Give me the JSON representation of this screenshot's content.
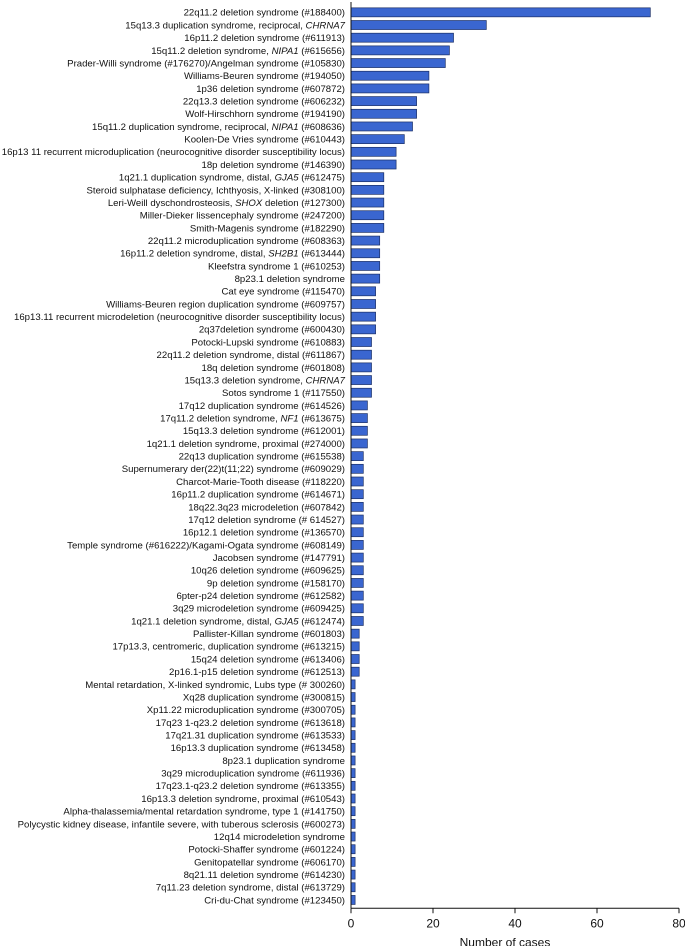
{
  "chart_data": {
    "type": "bar",
    "orientation": "horizontal",
    "title": "",
    "xlabel": "Number of cases",
    "ylabel": "",
    "xlim": [
      0,
      80
    ],
    "xticks": [
      0,
      20,
      40,
      60,
      80
    ],
    "grid": false,
    "legend": "none",
    "bar_color": "#3a66d0",
    "categories": [
      "22q11.2 deletion syndrome (#188400)",
      "15q13.3 duplication syndrome, reciprocal, CHRNA7",
      "16p11.2 deletion syndrome (#611913)",
      "15q11.2 deletion syndrome, NIPA1 (#615656)",
      "Prader-Willi syndrome (#176270)/Angelman syndrome (#105830)",
      "Williams-Beuren syndrome (#194050)",
      "1p36 deletion syndrome (#607872)",
      "22q13.3 deletion syndrome (#606232)",
      "Wolf-Hirschhorn syndrome (#194190)",
      "15q11.2 duplication syndrome, reciprocal, NIPA1 (#608636)",
      "Koolen-De Vries syndrome (#610443)",
      "16p13 11 recurrent microduplication (neurocognitive disorder susceptibility locus)",
      "18p deletion syndrome (#146390)",
      "1q21.1 duplication syndrome, distal, GJA5 (#612475)",
      "Steroid sulphatase deficiency, Ichthyosis, X-linked (#308100)",
      "Leri-Weill dyschondrosteosis, SHOX deletion (#127300)",
      "Miller-Dieker lissencephaly syndrome (#247200)",
      "Smith-Magenis syndrome (#182290)",
      "22q11.2 microduplication syndrome (#608363)",
      "16p11.2 deletion syndrome, distal, SH2B1 (#613444)",
      "Kleefstra syndrome 1 (#610253)",
      "8p23.1 deletion syndrome",
      "Cat eye syndrome (#115470)",
      "Williams-Beuren region duplication syndrome (#609757)",
      "16p13.11 recurrent microdeletion (neurocognitive disorder susceptibility locus)",
      "2q37deletion syndrome (#600430)",
      "Potocki-Lupski syndrome (#610883)",
      "22q11.2 deletion syndrome, distal (#611867)",
      "18q deletion syndrome (#601808)",
      "15q13.3 deletion syndrome, CHRNA7",
      "Sotos syndrome 1 (#117550)",
      "17q12 duplication syndrome (#614526)",
      "17q11.2 deletion syndrome, NF1 (#613675)",
      "15q13.3 deletion syndrome (#612001)",
      "1q21.1 deletion syndrome, proximal (#274000)",
      "22q13 duplication syndrome (#615538)",
      "Supernumerary der(22)t(11;22) syndrome (#609029)",
      "Charcot-Marie-Tooth disease (#118220)",
      "16p11.2 duplication syndrome (#614671)",
      "18q22.3q23 microdeletion (#607842)",
      "17q12 deletion syndrome (# 614527)",
      "16p12.1 deletion syndrome (#136570)",
      "Temple syndrome (#616222)/Kagami-Ogata syndrome (#608149)",
      "Jacobsen syndrome (#147791)",
      "10q26 deletion syndrome (#609625)",
      "9p deletion syndrome (#158170)",
      "6pter-p24 deletion syndrome (#612582)",
      "3q29 microdeletion syndrome (#609425)",
      "1q21.1 deletion syndrome, distal, GJA5 (#612474)",
      "Pallister-Killan syndrome (#601803)",
      "17p13.3, centromeric, duplication syndrome (#613215)",
      "15q24 deletion syndrome (#613406)",
      "2p16.1-p15 deletion syndrome (#612513)",
      "Mental retardation, X-linked syndromic, Lubs type (# 300260)",
      "Xq28 duplication syndrome (#300815)",
      "Xp11.22 microduplication syndrome (#300705)",
      "17q23 1-q23.2 deletion syndrome (#613618)",
      "17q21.31 duplication syndrome (#613533)",
      "16p13.3 duplication syndrome (#613458)",
      "8p23.1 duplication syndrome",
      "3q29 microduplication syndrome (#611936)",
      "17q23.1-q23.2 deletion syndrome (#613355)",
      "16p13.3 deletion syndrome, proximal (#610543)",
      "Alpha-thalassemia/mental retardation syndrome, type 1 (#141750)",
      "Polycystic kidney disease, infantile severe, with tuberous sclerosis (#600273)",
      "12q14 microdeletion syndrome",
      "Potocki-Shaffer syndrome (#601224)",
      "Genitopatellar syndrome (#606170)",
      "8q21.11 deletion syndrome (#614230)",
      "7q11.23 deletion syndrome, distal (#613729)",
      "Cri-du-Chat syndrome (#123450)"
    ],
    "values": [
      73,
      33,
      25,
      24,
      23,
      19,
      19,
      16,
      16,
      15,
      13,
      11,
      11,
      8,
      8,
      8,
      8,
      8,
      7,
      7,
      7,
      7,
      6,
      6,
      6,
      6,
      5,
      5,
      5,
      5,
      5,
      4,
      4,
      4,
      4,
      3,
      3,
      3,
      3,
      3,
      3,
      3,
      3,
      3,
      3,
      3,
      3,
      3,
      3,
      2,
      2,
      2,
      2,
      1,
      1,
      1,
      1,
      1,
      1,
      1,
      1,
      1,
      1,
      1,
      1,
      1,
      1,
      1,
      1,
      1,
      1
    ]
  }
}
